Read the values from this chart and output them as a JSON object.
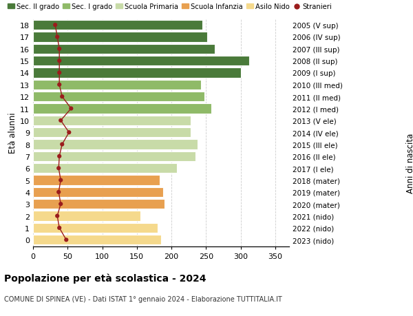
{
  "ages": [
    0,
    1,
    2,
    3,
    4,
    5,
    6,
    7,
    8,
    9,
    10,
    11,
    12,
    13,
    14,
    15,
    16,
    17,
    18
  ],
  "bar_values": [
    185,
    180,
    155,
    190,
    188,
    183,
    208,
    235,
    238,
    228,
    228,
    258,
    248,
    243,
    300,
    312,
    263,
    252,
    245
  ],
  "bar_colors": [
    "#f5d98c",
    "#f5d98c",
    "#f5d98c",
    "#e8a050",
    "#e8a050",
    "#e8a050",
    "#c8dba8",
    "#c8dba8",
    "#c8dba8",
    "#c8dba8",
    "#c8dba8",
    "#8fba68",
    "#8fba68",
    "#8fba68",
    "#4a7a3a",
    "#4a7a3a",
    "#4a7a3a",
    "#4a7a3a",
    "#4a7a3a"
  ],
  "stranieri_values": [
    48,
    38,
    35,
    40,
    37,
    40,
    37,
    38,
    42,
    52,
    40,
    55,
    42,
    38,
    38,
    38,
    38,
    35,
    32
  ],
  "right_labels": [
    "2023 (nido)",
    "2022 (nido)",
    "2021 (nido)",
    "2020 (mater)",
    "2019 (mater)",
    "2018 (mater)",
    "2017 (I ele)",
    "2016 (II ele)",
    "2015 (III ele)",
    "2014 (IV ele)",
    "2013 (V ele)",
    "2012 (I med)",
    "2011 (II med)",
    "2010 (III med)",
    "2009 (I sup)",
    "2008 (II sup)",
    "2007 (III sup)",
    "2006 (IV sup)",
    "2005 (V sup)"
  ],
  "ylabel_left": "Età alunni",
  "ylabel_right": "Anni di nascita",
  "title": "Popolazione per età scolastica - 2024",
  "subtitle": "COMUNE DI SPINEA (VE) - Dati ISTAT 1° gennaio 2024 - Elaborazione TUTTITALIA.IT",
  "xlim": [
    0,
    370
  ],
  "xticks": [
    0,
    50,
    100,
    150,
    200,
    250,
    300,
    350
  ],
  "legend_labels": [
    "Sec. II grado",
    "Sec. I grado",
    "Scuola Primaria",
    "Scuola Infanzia",
    "Asilo Nido",
    "Stranieri"
  ],
  "legend_colors": [
    "#4a7a3a",
    "#8fba68",
    "#c8dba8",
    "#e8a050",
    "#f5d98c",
    "#9b1c1c"
  ],
  "stranieri_line_color": "#9b1c1c",
  "stranieri_dot_color": "#9b1c1c",
  "background_color": "#ffffff",
  "grid_color": "#cccccc"
}
